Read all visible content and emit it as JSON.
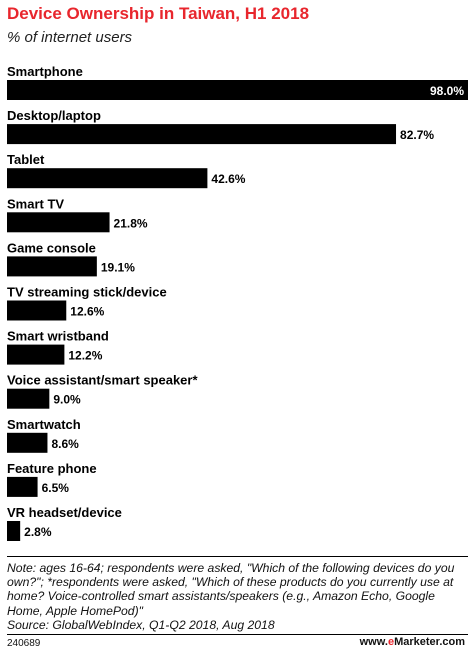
{
  "header": {
    "title": "Device Ownership in Taiwan, H1 2018",
    "subtitle": "% of internet users"
  },
  "chart_data": {
    "type": "bar",
    "orientation": "horizontal",
    "title": "Device Ownership in Taiwan, H1 2018",
    "subtitle": "% of internet users",
    "categories": [
      "Smartphone",
      "Desktop/laptop",
      "Tablet",
      "Smart TV",
      "Game console",
      "TV streaming stick/device",
      "Smart wristband",
      "Voice assistant/smart speaker*",
      "Smartwatch",
      "Feature phone",
      "VR headset/device"
    ],
    "values": [
      98.0,
      82.7,
      42.6,
      21.8,
      19.1,
      12.6,
      12.2,
      9.0,
      8.6,
      6.5,
      2.8
    ],
    "value_labels": [
      "98.0%",
      "82.7%",
      "42.6%",
      "21.8%",
      "19.1%",
      "12.6%",
      "12.2%",
      "9.0%",
      "8.6%",
      "6.5%",
      "2.8%"
    ],
    "xlim": [
      0,
      98
    ],
    "grid": false,
    "bar_color": "#000000"
  },
  "notes": {
    "note": "Note: ages 16-64; respondents were asked, \"Which of the following devices do you own?\"; *respondents were asked, \"Which of these products do you currently use at home? Voice-controlled smart assistants/speakers (e.g., Amazon Echo, Google Home, Apple HomePod)\"",
    "source": "Source: GlobalWebIndex, Q1-Q2 2018, Aug 2018"
  },
  "footer": {
    "id": "240689",
    "brand_prefix": "www.",
    "brand_e": "e",
    "brand_rest": "Marketer.com"
  },
  "colors": {
    "title": "#e8262d",
    "bar": "#000000",
    "text": "#000000"
  }
}
